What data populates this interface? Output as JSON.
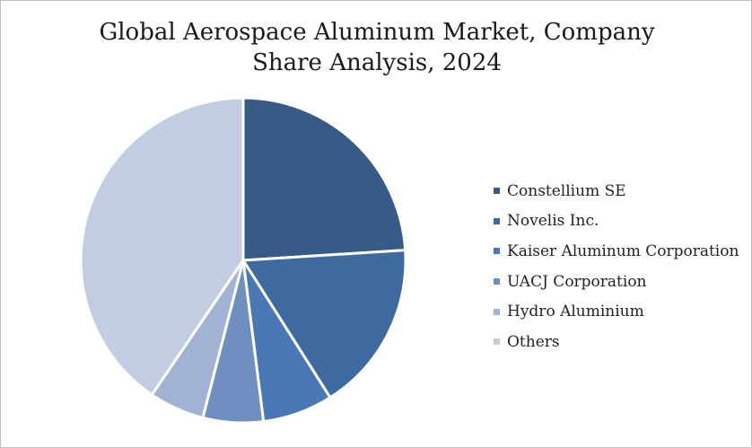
{
  "chart_data": {
    "type": "pie",
    "title_lines": [
      "Global Aerospace Aluminum Market, Company",
      "Share Analysis, 2024"
    ],
    "categories": [
      "Constellium SE",
      "Novelis Inc.",
      "Kaiser Aluminum Corporation",
      "UACJ Corporation",
      "Hydro Aluminium",
      "Others"
    ],
    "values": [
      24,
      17,
      7,
      6,
      5.5,
      40.5
    ],
    "colors": [
      "#375a87",
      "#3f6aa0",
      "#4a78b5",
      "#6f8fc0",
      "#a1b2d4",
      "#c3cde2"
    ],
    "legend_position": "right"
  }
}
